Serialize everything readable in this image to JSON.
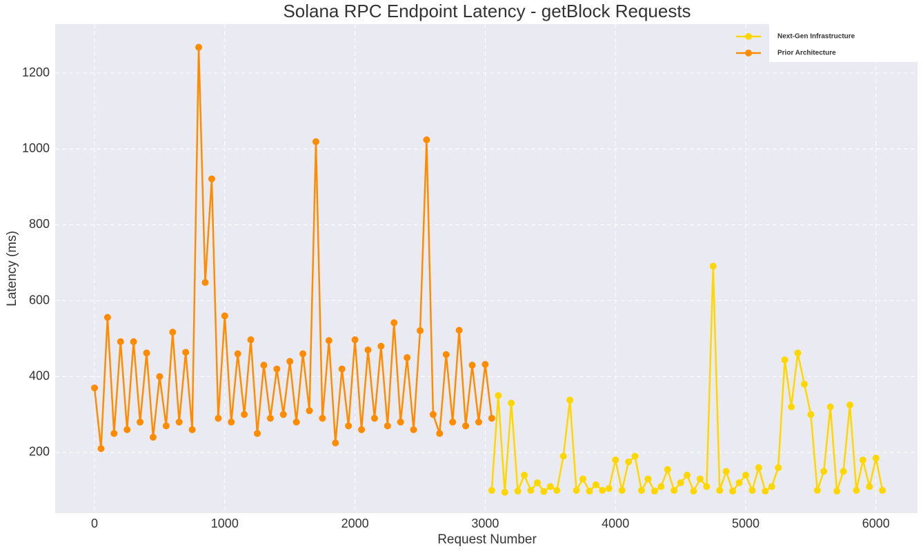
{
  "chart_data": {
    "type": "line",
    "title": "Solana RPC Endpoint Latency - getBlock Requests",
    "x_label": "Request Number",
    "y_label": "Latency (ms)",
    "xlim": [
      -302,
      6319
    ],
    "ylim": [
      40,
      1329
    ],
    "xticks": [
      0,
      1000,
      2000,
      3000,
      4000,
      5000,
      6000
    ],
    "yticks": [
      200,
      400,
      600,
      800,
      1000,
      1200
    ],
    "grid": true,
    "legend": "upper right",
    "series": [
      {
        "name": "Next-Gen Infrastructure",
        "color": "#FFD700",
        "x": [
          3050,
          3100,
          3150,
          3200,
          3250,
          3300,
          3350,
          3400,
          3450,
          3500,
          3550,
          3600,
          3650,
          3700,
          3750,
          3800,
          3850,
          3900,
          3950,
          4000,
          4050,
          4100,
          4150,
          4200,
          4250,
          4300,
          4350,
          4400,
          4450,
          4500,
          4550,
          4600,
          4650,
          4700,
          4750,
          4800,
          4850,
          4900,
          4950,
          5000,
          5050,
          5100,
          5150,
          5200,
          5250,
          5300,
          5350,
          5400,
          5450,
          5500,
          5550,
          5600,
          5650,
          5700,
          5750,
          5800,
          5850,
          5900,
          5950,
          6000,
          6050
        ],
        "values": [
          100,
          350,
          95,
          330,
          98,
          140,
          100,
          120,
          97,
          110,
          100,
          190,
          338,
          100,
          130,
          98,
          115,
          100,
          105,
          180,
          100,
          175,
          190,
          100,
          130,
          98,
          110,
          155,
          100,
          120,
          140,
          98,
          130,
          110,
          691,
          100,
          150,
          98,
          120,
          140,
          100,
          160,
          98,
          110,
          160,
          444,
          320,
          462,
          380,
          300,
          100,
          150,
          320,
          98,
          150,
          325,
          100,
          180,
          110,
          185,
          100
        ]
      },
      {
        "name": "Prior Architecture",
        "color": "#FF8C00",
        "x": [
          0,
          50,
          100,
          150,
          200,
          250,
          300,
          350,
          400,
          450,
          500,
          550,
          600,
          650,
          700,
          750,
          800,
          850,
          900,
          950,
          1000,
          1050,
          1100,
          1150,
          1200,
          1250,
          1300,
          1350,
          1400,
          1450,
          1500,
          1550,
          1600,
          1650,
          1700,
          1750,
          1800,
          1850,
          1900,
          1950,
          2000,
          2050,
          2100,
          2150,
          2200,
          2250,
          2300,
          2350,
          2400,
          2450,
          2500,
          2550,
          2600,
          2650,
          2700,
          2750,
          2800,
          2850,
          2900,
          2950,
          3000,
          3050
        ],
        "values": [
          370,
          210,
          556,
          250,
          492,
          260,
          492,
          280,
          462,
          240,
          400,
          270,
          517,
          280,
          464,
          260,
          1268,
          648,
          921,
          290,
          560,
          280,
          460,
          300,
          497,
          250,
          430,
          290,
          420,
          300,
          440,
          280,
          460,
          310,
          1019,
          290,
          495,
          225,
          420,
          270,
          497,
          260,
          470,
          290,
          480,
          270,
          542,
          280,
          450,
          260,
          521,
          1024,
          300,
          250,
          458,
          280,
          522,
          270,
          430,
          280,
          432,
          290
        ]
      }
    ]
  }
}
